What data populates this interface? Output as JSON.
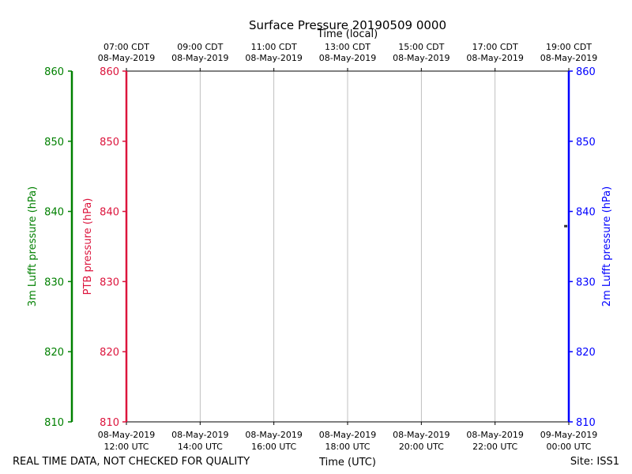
{
  "chart_data": {
    "type": "line",
    "title": "Surface Pressure 20190509 0000",
    "xlabel_bottom": "Time (UTC)",
    "xlabel_top": "Time (local)",
    "x_ticks_bottom": [
      [
        "08-May-2019",
        "12:00 UTC"
      ],
      [
        "08-May-2019",
        "14:00 UTC"
      ],
      [
        "08-May-2019",
        "16:00 UTC"
      ],
      [
        "08-May-2019",
        "18:00 UTC"
      ],
      [
        "08-May-2019",
        "20:00 UTC"
      ],
      [
        "08-May-2019",
        "22:00 UTC"
      ],
      [
        "09-May-2019",
        "00:00 UTC"
      ]
    ],
    "x_ticks_top": [
      [
        "07:00 CDT",
        "08-May-2019"
      ],
      [
        "09:00 CDT",
        "08-May-2019"
      ],
      [
        "11:00 CDT",
        "08-May-2019"
      ],
      [
        "13:00 CDT",
        "08-May-2019"
      ],
      [
        "15:00 CDT",
        "08-May-2019"
      ],
      [
        "17:00 CDT",
        "08-May-2019"
      ],
      [
        "19:00 CDT",
        "08-May-2019"
      ]
    ],
    "x_range_utc": [
      "2019-05-08 12:00",
      "2019-05-09 00:00"
    ],
    "y_ticks": [
      810,
      820,
      830,
      840,
      850,
      860
    ],
    "ylim": [
      810,
      860
    ],
    "grid": "vertical",
    "axes": [
      {
        "label": "3m Lufft pressure (hPa)",
        "color": "#008000",
        "side": "far-left"
      },
      {
        "label": "PTB pressure (hPa)",
        "color": "#dc143c",
        "side": "left"
      },
      {
        "label": "2m Lufft pressure (hPa)",
        "color": "#0000ff",
        "side": "right"
      }
    ],
    "series": [
      {
        "axis": "2m Lufft pressure (hPa)",
        "color": "#333333",
        "x": [
          "2019-05-08 23:55"
        ],
        "y": [
          837.9
        ]
      }
    ]
  },
  "footer": {
    "left": "REAL TIME DATA, NOT CHECKED FOR QUALITY",
    "right": "Site: ISS1"
  }
}
